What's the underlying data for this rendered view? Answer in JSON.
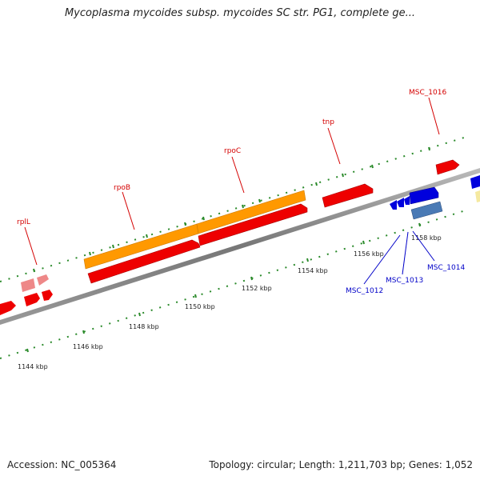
{
  "title": "Mycoplasma mycoides subsp. mycoides SC str. PG1, complete ge...",
  "footer": {
    "accession": "Accession: NC_005364",
    "summary": "Topology: circular; Length: 1,211,703 bp; Genes: 1,052"
  },
  "tick_labels": [
    "1144 kbp",
    "1146 kbp",
    "1148 kbp",
    "1150 kbp",
    "1152 kbp",
    "1154 kbp",
    "1156 kbp",
    "1158 kbp"
  ],
  "gene_labels": {
    "rplL": "rplL",
    "rpoB": "rpoB",
    "rpoC": "rpoC",
    "tnp": "tnp",
    "msc1016": "MSC_1016",
    "msc1012": "MSC_1012",
    "msc1013": "MSC_1013",
    "msc1014": "MSC_1014"
  },
  "colors": {
    "backbone": "#888888",
    "cds": "#ee0000",
    "gene": "#ff9900",
    "blue_feature": "#0000dd",
    "steelblue_feature": "#4a7ab5",
    "pink_feature": "#ee8888",
    "ticks": "#2a8a2a",
    "label_red": "#d40000",
    "label_blue": "#0000c8"
  }
}
